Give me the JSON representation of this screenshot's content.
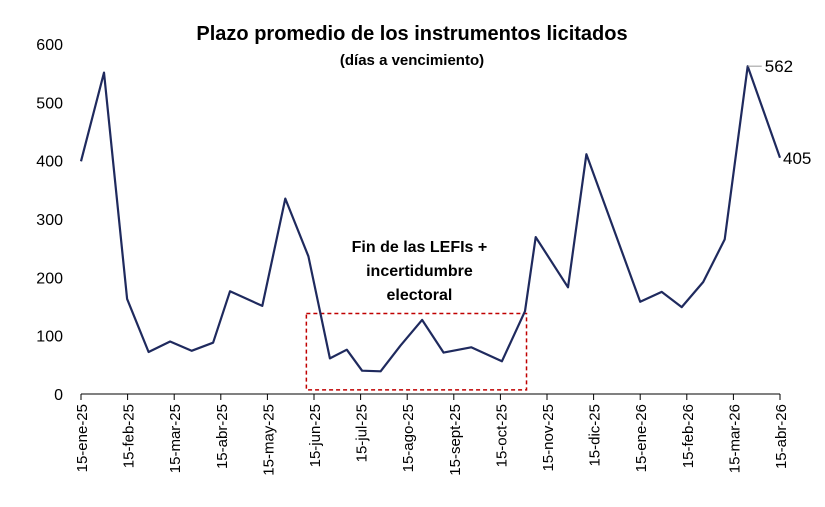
{
  "chart_data": {
    "type": "line",
    "title": "Plazo promedio de los instrumentos licitados",
    "subtitle": "(días a vencimiento)",
    "xlabel": "",
    "ylabel": "",
    "ylim": [
      0,
      600
    ],
    "yticks": [
      0,
      100,
      200,
      300,
      400,
      500,
      600
    ],
    "x_tick_labels": [
      "15-ene-25",
      "15-feb-25",
      "15-mar-25",
      "15-abr-25",
      "15-may-25",
      "15-jun-25",
      "15-jul-25",
      "15-ago-25",
      "15-sept-25",
      "15-oct-25",
      "15-nov-25",
      "15-dic-25",
      "15-ene-26",
      "15-feb-26",
      "15-mar-26",
      "15-abr-26"
    ],
    "x_range": [
      "2025-01-15",
      "2026-04-15"
    ],
    "grid": false,
    "line_color": "#1f2a5e",
    "series": [
      {
        "points": [
          {
            "date": "2025-01-15",
            "value": 399
          },
          {
            "date": "2025-01-30",
            "value": 551
          },
          {
            "date": "2025-02-14",
            "value": 163
          },
          {
            "date": "2025-02-28",
            "value": 72
          },
          {
            "date": "2025-03-14",
            "value": 90
          },
          {
            "date": "2025-03-28",
            "value": 74
          },
          {
            "date": "2025-04-11",
            "value": 88
          },
          {
            "date": "2025-04-22",
            "value": 176
          },
          {
            "date": "2025-05-13",
            "value": 151
          },
          {
            "date": "2025-05-28",
            "value": 335
          },
          {
            "date": "2025-06-12",
            "value": 236
          },
          {
            "date": "2025-06-26",
            "value": 61
          },
          {
            "date": "2025-07-07",
            "value": 76
          },
          {
            "date": "2025-07-17",
            "value": 40
          },
          {
            "date": "2025-07-29",
            "value": 39
          },
          {
            "date": "2025-08-11",
            "value": 83
          },
          {
            "date": "2025-08-25",
            "value": 127
          },
          {
            "date": "2025-09-08",
            "value": 71
          },
          {
            "date": "2025-09-26",
            "value": 80
          },
          {
            "date": "2025-10-16",
            "value": 56
          },
          {
            "date": "2025-10-31",
            "value": 142
          },
          {
            "date": "2025-11-07",
            "value": 269
          },
          {
            "date": "2025-11-28",
            "value": 183
          },
          {
            "date": "2025-12-10",
            "value": 411
          },
          {
            "date": "2026-01-14",
            "value": 158
          },
          {
            "date": "2026-01-28",
            "value": 175
          },
          {
            "date": "2026-02-10",
            "value": 149
          },
          {
            "date": "2026-02-24",
            "value": 192
          },
          {
            "date": "2026-03-10",
            "value": 265
          },
          {
            "date": "2026-03-25",
            "value": 562
          },
          {
            "date": "2026-04-15",
            "value": 405
          }
        ]
      }
    ],
    "annotations": {
      "box_label_lines": [
        "Fin de las LEFIs +",
        "incertidumbre",
        "electoral"
      ],
      "box_range": [
        "2025-06-12",
        "2025-11-01"
      ],
      "box_value_range": [
        7,
        138
      ],
      "box_color": "#c00000",
      "last_peak_label": "562",
      "last_value_label": "405"
    }
  }
}
